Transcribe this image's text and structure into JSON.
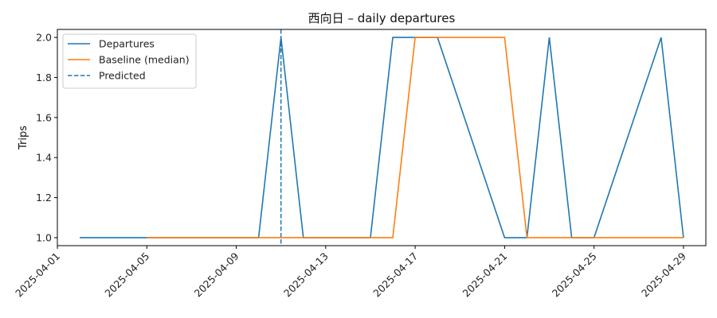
{
  "chart_data": {
    "type": "line",
    "title": "西向日 – daily departures",
    "xlabel": "",
    "ylabel": "Trips",
    "xlim": [
      "2025-04-01",
      "2025-04-30"
    ],
    "ylim": [
      0.96,
      2.04
    ],
    "x_ticks": [
      "2025-04-01",
      "2025-04-05",
      "2025-04-09",
      "2025-04-13",
      "2025-04-17",
      "2025-04-21",
      "2025-04-25",
      "2025-04-29"
    ],
    "y_ticks": [
      "1.0",
      "1.2",
      "1.4",
      "1.6",
      "1.8",
      "2.0"
    ],
    "legend_position": "top-left",
    "grid": false,
    "series": [
      {
        "name": "Departures",
        "color": "#1f77b4",
        "style": "solid",
        "points": [
          [
            "2025-04-02",
            1
          ],
          [
            "2025-04-05",
            1
          ],
          [
            "2025-04-10",
            1
          ],
          [
            "2025-04-11",
            2
          ],
          [
            "2025-04-12",
            1
          ],
          [
            "2025-04-15",
            1
          ],
          [
            "2025-04-16",
            2
          ],
          [
            "2025-04-18",
            2
          ],
          [
            "2025-04-21",
            1
          ],
          [
            "2025-04-22",
            1
          ],
          [
            "2025-04-23",
            2
          ],
          [
            "2025-04-24",
            1
          ],
          [
            "2025-04-25",
            1
          ],
          [
            "2025-04-28",
            2
          ],
          [
            "2025-04-29",
            1
          ]
        ]
      },
      {
        "name": "Baseline (median)",
        "color": "#ff7f0e",
        "style": "solid",
        "points": [
          [
            "2025-04-05",
            1
          ],
          [
            "2025-04-16",
            1
          ],
          [
            "2025-04-17",
            2
          ],
          [
            "2025-04-21",
            2
          ],
          [
            "2025-04-22",
            1
          ],
          [
            "2025-04-29",
            1
          ]
        ]
      }
    ],
    "vlines": [
      {
        "name": "Predicted",
        "x": "2025-04-11",
        "color": "#1f77b4",
        "style": "dashed"
      }
    ]
  }
}
